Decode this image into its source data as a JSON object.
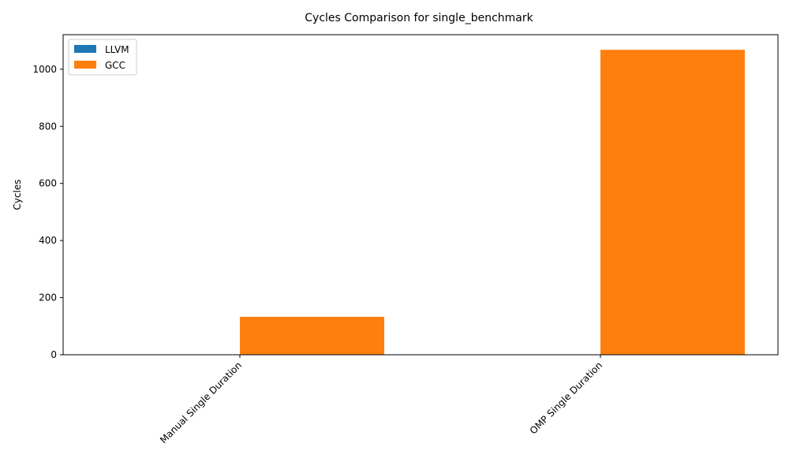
{
  "chart_data": {
    "type": "bar",
    "title": "Cycles Comparison for single_benchmark",
    "xlabel": "",
    "ylabel": "Cycles",
    "categories": [
      "Manual Single Duration",
      "OMP Single Duration"
    ],
    "series": [
      {
        "name": "LLVM",
        "color": "#1f77b4",
        "values": [
          0,
          0
        ]
      },
      {
        "name": "GCC",
        "color": "#ff7f0e",
        "values": [
          133,
          1068
        ]
      }
    ],
    "ylim": [
      0,
      1121
    ],
    "yticks": [
      0,
      200,
      400,
      600,
      800,
      1000
    ],
    "grid": false,
    "legend": "top-left"
  }
}
